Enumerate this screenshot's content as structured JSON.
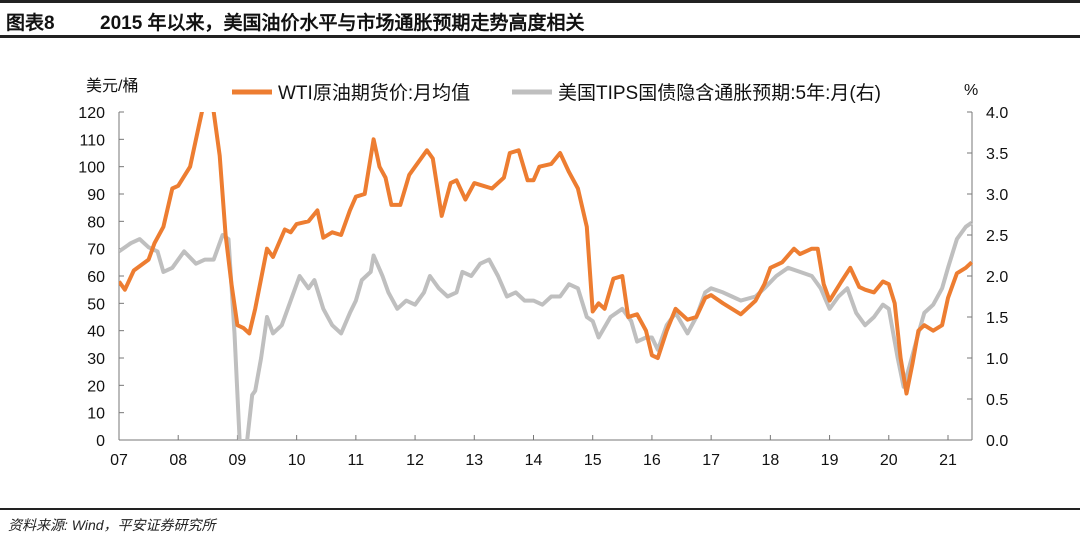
{
  "header": {
    "label": "图表8",
    "title": "2015 年以来，美国油价水平与市场通胀预期走势高度相关"
  },
  "footer": {
    "source": "资料来源: Wind，平安证券研究所"
  },
  "chart_data": {
    "type": "line",
    "title": "2015 年以来，美国油价水平与市场通胀预期走势高度相关",
    "ylabel_left": "美元/桶",
    "ylabel_right": "%",
    "ylim_left": [
      0,
      120
    ],
    "ylim_right": [
      0,
      4.0
    ],
    "xlim": [
      2007,
      2021.4
    ],
    "x_ticks": [
      {
        "v": 2007,
        "l": "07"
      },
      {
        "v": 2008,
        "l": "08"
      },
      {
        "v": 2009,
        "l": "09"
      },
      {
        "v": 2010,
        "l": "10"
      },
      {
        "v": 2011,
        "l": "11"
      },
      {
        "v": 2012,
        "l": "12"
      },
      {
        "v": 2013,
        "l": "13"
      },
      {
        "v": 2014,
        "l": "14"
      },
      {
        "v": 2015,
        "l": "15"
      },
      {
        "v": 2016,
        "l": "16"
      },
      {
        "v": 2017,
        "l": "17"
      },
      {
        "v": 2018,
        "l": "18"
      },
      {
        "v": 2019,
        "l": "19"
      },
      {
        "v": 2020,
        "l": "20"
      },
      {
        "v": 2021,
        "l": "21"
      }
    ],
    "y_ticks_left": [
      "0",
      "10",
      "20",
      "30",
      "40",
      "50",
      "60",
      "70",
      "80",
      "90",
      "100",
      "110",
      "120"
    ],
    "y_ticks_right": [
      "0.0",
      "0.5",
      "1.0",
      "1.5",
      "2.0",
      "2.5",
      "3.0",
      "3.5",
      "4.0"
    ],
    "legend_position": "top",
    "series": [
      {
        "name": "WTI原油期货价:月均值",
        "axis": "left",
        "color": "#ED7D31",
        "points": [
          [
            2007.0,
            58
          ],
          [
            2007.1,
            55
          ],
          [
            2007.25,
            62
          ],
          [
            2007.5,
            66
          ],
          [
            2007.6,
            72
          ],
          [
            2007.75,
            78
          ],
          [
            2007.9,
            92
          ],
          [
            2008.0,
            93
          ],
          [
            2008.2,
            100
          ],
          [
            2008.35,
            115
          ],
          [
            2008.45,
            125
          ],
          [
            2008.5,
            133
          ],
          [
            2008.6,
            120
          ],
          [
            2008.7,
            104
          ],
          [
            2008.8,
            75
          ],
          [
            2008.9,
            57
          ],
          [
            2009.0,
            42
          ],
          [
            2009.1,
            41
          ],
          [
            2009.2,
            39
          ],
          [
            2009.3,
            48
          ],
          [
            2009.4,
            59
          ],
          [
            2009.5,
            70
          ],
          [
            2009.6,
            67
          ],
          [
            2009.7,
            72
          ],
          [
            2009.8,
            77
          ],
          [
            2009.9,
            76
          ],
          [
            2010.0,
            79
          ],
          [
            2010.2,
            80
          ],
          [
            2010.35,
            84
          ],
          [
            2010.45,
            74
          ],
          [
            2010.6,
            76
          ],
          [
            2010.75,
            75
          ],
          [
            2010.9,
            84
          ],
          [
            2011.0,
            89
          ],
          [
            2011.15,
            90
          ],
          [
            2011.3,
            110
          ],
          [
            2011.4,
            100
          ],
          [
            2011.5,
            96
          ],
          [
            2011.6,
            86
          ],
          [
            2011.75,
            86
          ],
          [
            2011.9,
            97
          ],
          [
            2012.0,
            100
          ],
          [
            2012.2,
            106
          ],
          [
            2012.3,
            103
          ],
          [
            2012.45,
            82
          ],
          [
            2012.6,
            94
          ],
          [
            2012.7,
            95
          ],
          [
            2012.85,
            88
          ],
          [
            2013.0,
            94
          ],
          [
            2013.15,
            93
          ],
          [
            2013.3,
            92
          ],
          [
            2013.5,
            96
          ],
          [
            2013.6,
            105
          ],
          [
            2013.75,
            106
          ],
          [
            2013.9,
            95
          ],
          [
            2014.0,
            95
          ],
          [
            2014.1,
            100
          ],
          [
            2014.3,
            101
          ],
          [
            2014.45,
            105
          ],
          [
            2014.6,
            98
          ],
          [
            2014.75,
            92
          ],
          [
            2014.9,
            78
          ],
          [
            2015.0,
            47
          ],
          [
            2015.1,
            50
          ],
          [
            2015.2,
            48
          ],
          [
            2015.35,
            59
          ],
          [
            2015.5,
            60
          ],
          [
            2015.6,
            45
          ],
          [
            2015.75,
            46
          ],
          [
            2015.9,
            40
          ],
          [
            2016.0,
            31
          ],
          [
            2016.1,
            30
          ],
          [
            2016.25,
            40
          ],
          [
            2016.4,
            48
          ],
          [
            2016.6,
            44
          ],
          [
            2016.75,
            45
          ],
          [
            2016.9,
            52
          ],
          [
            2017.0,
            53
          ],
          [
            2017.2,
            50
          ],
          [
            2017.35,
            48
          ],
          [
            2017.5,
            46
          ],
          [
            2017.75,
            51
          ],
          [
            2017.9,
            57
          ],
          [
            2018.0,
            63
          ],
          [
            2018.2,
            65
          ],
          [
            2018.4,
            70
          ],
          [
            2018.5,
            68
          ],
          [
            2018.7,
            70
          ],
          [
            2018.8,
            70
          ],
          [
            2018.9,
            57
          ],
          [
            2019.0,
            51
          ],
          [
            2019.2,
            58
          ],
          [
            2019.35,
            63
          ],
          [
            2019.5,
            56
          ],
          [
            2019.6,
            55
          ],
          [
            2019.75,
            54
          ],
          [
            2019.9,
            58
          ],
          [
            2020.0,
            57
          ],
          [
            2020.1,
            50
          ],
          [
            2020.2,
            30
          ],
          [
            2020.3,
            17
          ],
          [
            2020.4,
            28
          ],
          [
            2020.5,
            40
          ],
          [
            2020.6,
            42
          ],
          [
            2020.75,
            40
          ],
          [
            2020.9,
            42
          ],
          [
            2021.0,
            52
          ],
          [
            2021.15,
            61
          ],
          [
            2021.3,
            63
          ],
          [
            2021.4,
            65
          ]
        ]
      },
      {
        "name": "美国TIPS国债隐含通胀预期:5年:月(右)",
        "axis": "right",
        "color": "#BFBFBF",
        "points": [
          [
            2007.0,
            2.3
          ],
          [
            2007.2,
            2.4
          ],
          [
            2007.35,
            2.45
          ],
          [
            2007.5,
            2.35
          ],
          [
            2007.65,
            2.3
          ],
          [
            2007.75,
            2.05
          ],
          [
            2007.9,
            2.1
          ],
          [
            2008.1,
            2.3
          ],
          [
            2008.3,
            2.15
          ],
          [
            2008.45,
            2.2
          ],
          [
            2008.6,
            2.2
          ],
          [
            2008.75,
            2.5
          ],
          [
            2008.85,
            2.45
          ],
          [
            2008.95,
            1.3
          ],
          [
            2009.05,
            -0.2
          ],
          [
            2009.15,
            -0.1
          ],
          [
            2009.25,
            0.55
          ],
          [
            2009.3,
            0.6
          ],
          [
            2009.4,
            1.0
          ],
          [
            2009.5,
            1.5
          ],
          [
            2009.6,
            1.3
          ],
          [
            2009.75,
            1.4
          ],
          [
            2009.9,
            1.7
          ],
          [
            2010.05,
            2.0
          ],
          [
            2010.2,
            1.85
          ],
          [
            2010.3,
            1.95
          ],
          [
            2010.45,
            1.6
          ],
          [
            2010.6,
            1.4
          ],
          [
            2010.75,
            1.3
          ],
          [
            2010.9,
            1.55
          ],
          [
            2011.0,
            1.7
          ],
          [
            2011.1,
            1.95
          ],
          [
            2011.25,
            2.05
          ],
          [
            2011.3,
            2.25
          ],
          [
            2011.45,
            2.0
          ],
          [
            2011.55,
            1.8
          ],
          [
            2011.7,
            1.6
          ],
          [
            2011.85,
            1.7
          ],
          [
            2012.0,
            1.65
          ],
          [
            2012.15,
            1.8
          ],
          [
            2012.25,
            2.0
          ],
          [
            2012.4,
            1.85
          ],
          [
            2012.55,
            1.75
          ],
          [
            2012.7,
            1.8
          ],
          [
            2012.8,
            2.05
          ],
          [
            2012.95,
            2.0
          ],
          [
            2013.1,
            2.15
          ],
          [
            2013.25,
            2.2
          ],
          [
            2013.4,
            2.0
          ],
          [
            2013.55,
            1.75
          ],
          [
            2013.7,
            1.8
          ],
          [
            2013.85,
            1.7
          ],
          [
            2014.0,
            1.7
          ],
          [
            2014.15,
            1.65
          ],
          [
            2014.3,
            1.75
          ],
          [
            2014.45,
            1.75
          ],
          [
            2014.6,
            1.9
          ],
          [
            2014.75,
            1.85
          ],
          [
            2014.9,
            1.5
          ],
          [
            2015.0,
            1.45
          ],
          [
            2015.1,
            1.25
          ],
          [
            2015.3,
            1.5
          ],
          [
            2015.5,
            1.6
          ],
          [
            2015.65,
            1.45
          ],
          [
            2015.75,
            1.2
          ],
          [
            2015.9,
            1.25
          ],
          [
            2016.0,
            1.25
          ],
          [
            2016.1,
            1.1
          ],
          [
            2016.25,
            1.4
          ],
          [
            2016.4,
            1.55
          ],
          [
            2016.6,
            1.3
          ],
          [
            2016.75,
            1.5
          ],
          [
            2016.9,
            1.8
          ],
          [
            2017.0,
            1.85
          ],
          [
            2017.2,
            1.8
          ],
          [
            2017.35,
            1.75
          ],
          [
            2017.5,
            1.7
          ],
          [
            2017.75,
            1.75
          ],
          [
            2017.9,
            1.85
          ],
          [
            2018.1,
            2.0
          ],
          [
            2018.3,
            2.1
          ],
          [
            2018.5,
            2.05
          ],
          [
            2018.7,
            2.0
          ],
          [
            2018.85,
            1.85
          ],
          [
            2019.0,
            1.6
          ],
          [
            2019.15,
            1.75
          ],
          [
            2019.3,
            1.85
          ],
          [
            2019.45,
            1.55
          ],
          [
            2019.6,
            1.4
          ],
          [
            2019.75,
            1.5
          ],
          [
            2019.9,
            1.65
          ],
          [
            2020.0,
            1.6
          ],
          [
            2020.15,
            1.0
          ],
          [
            2020.25,
            0.65
          ],
          [
            2020.35,
            0.9
          ],
          [
            2020.5,
            1.3
          ],
          [
            2020.6,
            1.55
          ],
          [
            2020.75,
            1.65
          ],
          [
            2020.9,
            1.85
          ],
          [
            2021.0,
            2.1
          ],
          [
            2021.15,
            2.45
          ],
          [
            2021.3,
            2.6
          ],
          [
            2021.4,
            2.65
          ]
        ]
      }
    ]
  }
}
